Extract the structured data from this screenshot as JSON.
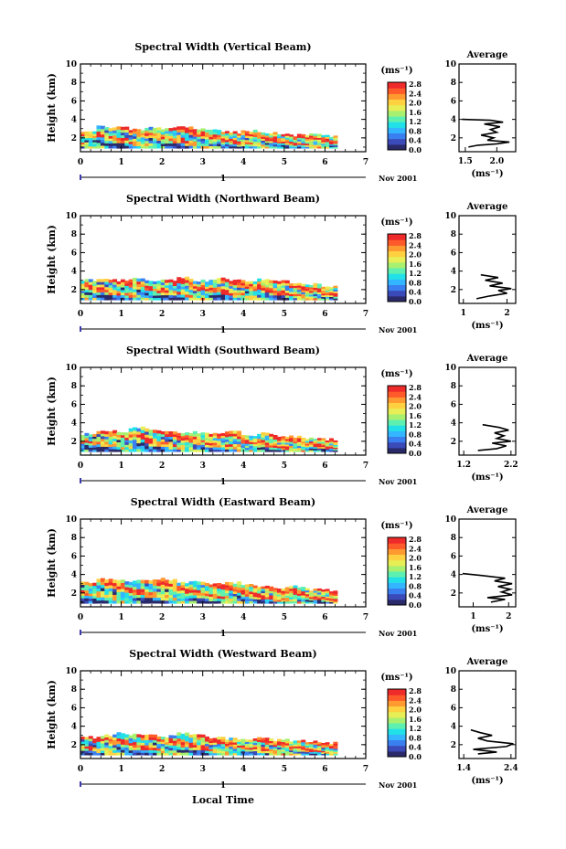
{
  "figure": {
    "ylabel": "Height (km)",
    "xlabel": "Local Time",
    "date_label": "Nov 2001",
    "day_label": "1",
    "colorbar_unit": "(ms⁻¹)",
    "avg_unit": "(ms⁻¹)",
    "avg_title": "Average"
  },
  "colors": {
    "colormap": [
      "#2a2a6a",
      "#3a4ab8",
      "#3a7ff0",
      "#33b5ff",
      "#22e0e8",
      "#5ef0b0",
      "#a8f070",
      "#e8ee55",
      "#ffd040",
      "#ff9a30",
      "#ff5a2a",
      "#ee2a2a"
    ],
    "marker": "#3b3bb0"
  },
  "chart_data": [
    {
      "type": "heatmap",
      "title": "Spectral Width (Vertical Beam)",
      "x_ticks": [
        "0",
        "1",
        "2",
        "3",
        "4",
        "5",
        "6",
        "7"
      ],
      "y_ticks": [
        "2",
        "4",
        "6",
        "8",
        "10"
      ],
      "xlim": [
        0,
        7
      ],
      "ylim": [
        0.5,
        10
      ],
      "colorbar_ticks": [
        "0.0",
        "0.4",
        "0.8",
        "1.2",
        "1.6",
        "2.0",
        "2.4",
        "2.8"
      ],
      "colorbar_range": [
        0,
        2.8
      ],
      "coverage_top_km": [
        2.6,
        3.2,
        3.1,
        2.9,
        3.2,
        3.0,
        3.1,
        3.0,
        2.8,
        2.6,
        2.8,
        2.5,
        2.5,
        2.3,
        2.4,
        2.2
      ],
      "coverage_end_h": 6.3,
      "average": {
        "x_ticks": [
          "1.5",
          "2.0"
        ],
        "xlim": [
          1.4,
          2.3
        ],
        "profile": [
          [
            1.55,
            1.0
          ],
          [
            1.7,
            1.2
          ],
          [
            2.0,
            1.35
          ],
          [
            2.2,
            1.55
          ],
          [
            1.85,
            1.75
          ],
          [
            1.95,
            2.0
          ],
          [
            1.75,
            2.3
          ],
          [
            2.0,
            2.6
          ],
          [
            1.9,
            2.9
          ],
          [
            2.05,
            3.2
          ],
          [
            1.8,
            3.5
          ],
          [
            2.1,
            3.7
          ],
          [
            1.9,
            3.9
          ],
          [
            1.45,
            4.0
          ]
        ]
      }
    },
    {
      "type": "heatmap",
      "title": "Spectral Width (Northward Beam)",
      "x_ticks": [
        "0",
        "1",
        "2",
        "3",
        "4",
        "5",
        "6",
        "7"
      ],
      "y_ticks": [
        "2",
        "4",
        "6",
        "8",
        "10"
      ],
      "xlim": [
        0,
        7
      ],
      "ylim": [
        0.5,
        10
      ],
      "colorbar_ticks": [
        "0.0",
        "0.4",
        "0.8",
        "1.2",
        "1.6",
        "2.0",
        "2.4",
        "2.8"
      ],
      "colorbar_range": [
        0,
        2.8
      ],
      "coverage_top_km": [
        3.0,
        3.1,
        3.0,
        3.2,
        3.0,
        3.1,
        3.3,
        3.0,
        3.2,
        3.0,
        2.9,
        3.1,
        2.9,
        2.7,
        2.6,
        2.4
      ],
      "coverage_end_h": 6.3,
      "average": {
        "x_ticks": [
          "1",
          "2"
        ],
        "xlim": [
          0.9,
          2.2
        ],
        "profile": [
          [
            1.3,
            1.0
          ],
          [
            1.6,
            1.3
          ],
          [
            2.0,
            1.6
          ],
          [
            1.8,
            1.9
          ],
          [
            2.1,
            2.1
          ],
          [
            1.6,
            2.4
          ],
          [
            1.9,
            2.7
          ],
          [
            1.5,
            3.0
          ],
          [
            1.8,
            3.3
          ],
          [
            1.4,
            3.6
          ]
        ]
      }
    },
    {
      "type": "heatmap",
      "title": "Spectral Width (Southward Beam)",
      "x_ticks": [
        "0",
        "1",
        "2",
        "3",
        "4",
        "5",
        "6",
        "7"
      ],
      "y_ticks": [
        "2",
        "4",
        "6",
        "8",
        "10"
      ],
      "xlim": [
        0,
        7
      ],
      "ylim": [
        0.5,
        10
      ],
      "colorbar_ticks": [
        "0.0",
        "0.4",
        "0.8",
        "1.2",
        "1.6",
        "2.0",
        "2.4",
        "2.8"
      ],
      "colorbar_range": [
        0,
        2.8
      ],
      "coverage_top_km": [
        2.8,
        3.0,
        3.1,
        3.5,
        3.3,
        3.1,
        2.9,
        3.0,
        2.8,
        3.1,
        2.7,
        2.9,
        2.6,
        2.5,
        2.3,
        2.2
      ],
      "coverage_end_h": 6.3,
      "average": {
        "x_ticks": [
          "1.2",
          "2.2"
        ],
        "xlim": [
          1.1,
          2.3
        ],
        "profile": [
          [
            1.5,
            1.0
          ],
          [
            1.9,
            1.2
          ],
          [
            2.1,
            1.5
          ],
          [
            1.8,
            1.8
          ],
          [
            2.2,
            2.0
          ],
          [
            1.9,
            2.3
          ],
          [
            2.05,
            2.6
          ],
          [
            1.85,
            2.9
          ],
          [
            2.15,
            3.2
          ],
          [
            1.95,
            3.5
          ],
          [
            1.6,
            3.8
          ]
        ]
      }
    },
    {
      "type": "heatmap",
      "title": "Spectral Width (Eastward Beam)",
      "x_ticks": [
        "0",
        "1",
        "2",
        "3",
        "4",
        "5",
        "6",
        "7"
      ],
      "y_ticks": [
        "2",
        "4",
        "6",
        "8",
        "10"
      ],
      "xlim": [
        0,
        7
      ],
      "ylim": [
        0.5,
        10
      ],
      "colorbar_ticks": [
        "0.0",
        "0.4",
        "0.8",
        "1.2",
        "1.6",
        "2.0",
        "2.4",
        "2.8"
      ],
      "colorbar_range": [
        0,
        2.8
      ],
      "coverage_top_km": [
        3.2,
        3.6,
        3.4,
        3.3,
        3.4,
        3.5,
        3.2,
        3.2,
        3.0,
        3.1,
        2.9,
        2.8,
        2.6,
        2.7,
        2.4,
        2.3
      ],
      "coverage_end_h": 6.3,
      "average": {
        "x_ticks": [
          "1",
          "2"
        ],
        "xlim": [
          0.6,
          2.2
        ],
        "profile": [
          [
            1.5,
            1.0
          ],
          [
            1.9,
            1.3
          ],
          [
            1.4,
            1.5
          ],
          [
            2.1,
            1.8
          ],
          [
            1.8,
            2.1
          ],
          [
            2.05,
            2.4
          ],
          [
            1.7,
            2.7
          ],
          [
            2.1,
            3.0
          ],
          [
            1.6,
            3.3
          ],
          [
            1.9,
            3.6
          ],
          [
            1.2,
            3.9
          ],
          [
            0.7,
            4.1
          ]
        ]
      }
    },
    {
      "type": "heatmap",
      "title": "Spectral Width (Westward Beam)",
      "x_ticks": [
        "0",
        "1",
        "2",
        "3",
        "4",
        "5",
        "6",
        "7"
      ],
      "y_ticks": [
        "2",
        "4",
        "6",
        "8",
        "10"
      ],
      "xlim": [
        0,
        7
      ],
      "ylim": [
        0.5,
        10
      ],
      "colorbar_ticks": [
        "0.0",
        "0.4",
        "0.8",
        "1.2",
        "1.6",
        "2.0",
        "2.4",
        "2.8"
      ],
      "colorbar_range": [
        0,
        2.8
      ],
      "coverage_top_km": [
        2.8,
        3.0,
        3.2,
        3.1,
        3.0,
        2.9,
        3.2,
        3.0,
        2.8,
        2.7,
        2.6,
        2.7,
        2.5,
        2.4,
        2.3,
        2.2
      ],
      "coverage_end_h": 6.3,
      "average": {
        "x_ticks": [
          "1.4",
          "2.4"
        ],
        "xlim": [
          1.3,
          2.5
        ],
        "profile": [
          [
            1.7,
            1.0
          ],
          [
            2.1,
            1.2
          ],
          [
            1.6,
            1.5
          ],
          [
            2.3,
            1.8
          ],
          [
            2.45,
            2.1
          ],
          [
            1.9,
            2.4
          ],
          [
            1.7,
            2.7
          ],
          [
            2.0,
            3.0
          ],
          [
            1.75,
            3.3
          ],
          [
            1.55,
            3.6
          ]
        ]
      }
    }
  ]
}
